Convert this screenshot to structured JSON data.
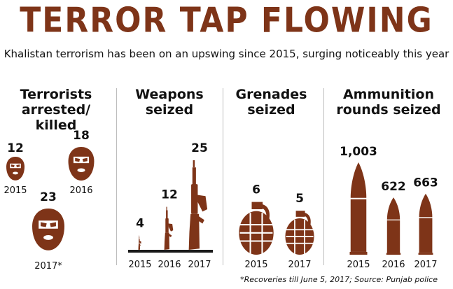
{
  "header": {
    "title": "TERROR TAP FLOWING",
    "subtitle": "Khalistan terrorism has been on an upswing since 2015, surging noticeably this year"
  },
  "footnote": "*Recoveries till June 5, 2017; Source: Punjab police",
  "colors": {
    "accent": "#7e3418",
    "baseline": "#1a1a1a",
    "divider": "#bdbdbd"
  },
  "chart_data": [
    {
      "type": "pictograph",
      "icon": "balaclava-icon",
      "title_lines": [
        "Terrorists",
        "arrested/ killed"
      ],
      "categories": [
        "2015",
        "2016",
        "2017*"
      ],
      "values": [
        12,
        18,
        23
      ],
      "value_labels": [
        "12",
        "18",
        "23"
      ]
    },
    {
      "type": "pictograph",
      "icon": "rifle-icon",
      "title_lines": [
        "Weapons",
        "seized"
      ],
      "categories": [
        "2015",
        "2016",
        "2017"
      ],
      "values": [
        4,
        12,
        25
      ],
      "value_labels": [
        "4",
        "12",
        "25"
      ]
    },
    {
      "type": "pictograph",
      "icon": "grenade-icon",
      "title_lines": [
        "Grenades",
        "seized"
      ],
      "categories": [
        "2015",
        "2017"
      ],
      "values": [
        6,
        5
      ],
      "value_labels": [
        "6",
        "5"
      ]
    },
    {
      "type": "pictograph",
      "icon": "bullet-icon",
      "title_lines": [
        "Ammunition",
        "rounds seized"
      ],
      "categories": [
        "2015",
        "2016",
        "2017"
      ],
      "values": [
        1003,
        622,
        663
      ],
      "value_labels": [
        "1,003",
        "622",
        "663"
      ]
    }
  ]
}
